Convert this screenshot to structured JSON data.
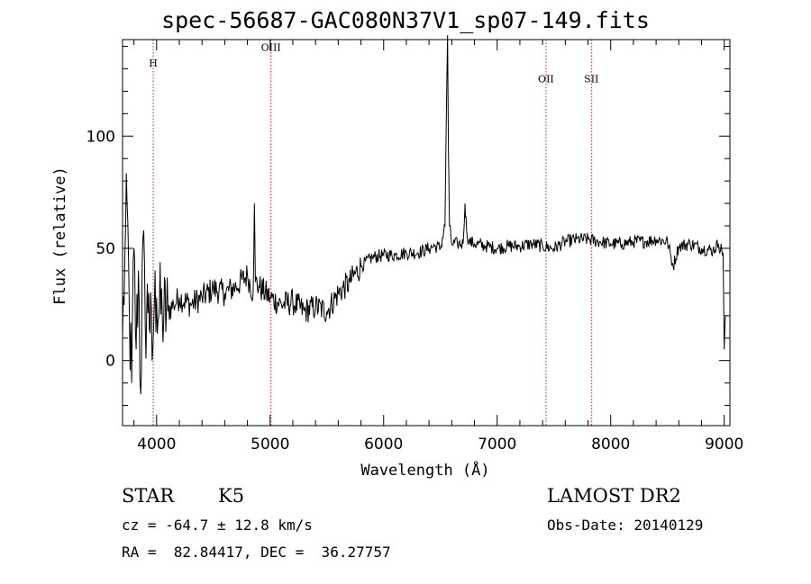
{
  "title": "spec-56687-GAC080N37V1_sp07-149.fits",
  "info": {
    "class": "STAR",
    "subclass": "K5",
    "survey": "LAMOST DR2",
    "cz": "cz = -64.7 ± 12.8 km/s",
    "obs_date": "Obs-Date: 20140129",
    "coords": "RA =  82.84417, DEC =  36.27757"
  },
  "chart_data": {
    "type": "line",
    "xlabel": "Wavelength (Å)",
    "ylabel": "Flux (relative)",
    "xlim": [
      3700,
      9050
    ],
    "ylim": [
      -29,
      143
    ],
    "xticks": [
      4000,
      5000,
      6000,
      7000,
      8000,
      9000
    ],
    "yticks": [
      0,
      50,
      100
    ],
    "line_color": "#000000",
    "marker_color": "#cc2222",
    "lines": [
      {
        "name": "H",
        "x": 3970,
        "label_y": 131
      },
      {
        "name": "OIII",
        "x": 5007,
        "label_y": 138
      },
      {
        "name": "OII",
        "x": 7430,
        "label_y": 124
      },
      {
        "name": "SII",
        "x": 7830,
        "label_y": 124
      }
    ],
    "series": [
      {
        "x": [
          3700,
          3720,
          3740,
          3760,
          3780,
          3800,
          3820,
          3840,
          3860,
          3880,
          3900,
          3930,
          3960,
          3980,
          4000,
          4050,
          4100,
          4150,
          4200,
          4300,
          4400,
          4500,
          4600,
          4700,
          4800,
          4850,
          4861,
          4870,
          4900,
          5000,
          5100,
          5200,
          5300,
          5400,
          5500,
          5600,
          5700,
          5800,
          5900,
          6000,
          6100,
          6200,
          6300,
          6400,
          6450,
          6500,
          6540,
          6555,
          6563,
          6570,
          6580,
          6600,
          6650,
          6700,
          6716,
          6731,
          6750,
          6800,
          6900,
          7000,
          7100,
          7200,
          7300,
          7400,
          7500,
          7600,
          7700,
          7800,
          7900,
          8000,
          8100,
          8200,
          8300,
          8400,
          8500,
          8550,
          8600,
          8700,
          8800,
          8900,
          8950,
          8990,
          9000,
          9010
        ],
        "y": [
          10,
          45,
          70,
          20,
          -10,
          50,
          5,
          40,
          -15,
          55,
          15,
          30,
          0,
          25,
          28,
          20,
          22,
          25,
          28,
          25,
          28,
          32,
          30,
          33,
          38,
          30,
          70,
          35,
          33,
          28,
          25,
          26,
          22,
          24,
          22,
          30,
          35,
          42,
          46,
          47,
          47,
          48,
          48,
          50,
          51,
          50,
          60,
          120,
          145,
          95,
          60,
          52,
          52,
          52,
          70,
          58,
          53,
          52,
          51,
          50,
          51,
          51,
          52,
          51,
          50,
          53,
          54,
          54,
          53,
          52,
          52,
          53,
          53,
          54,
          53,
          42,
          51,
          52,
          50,
          49,
          52,
          48,
          5,
          20
        ]
      }
    ]
  }
}
